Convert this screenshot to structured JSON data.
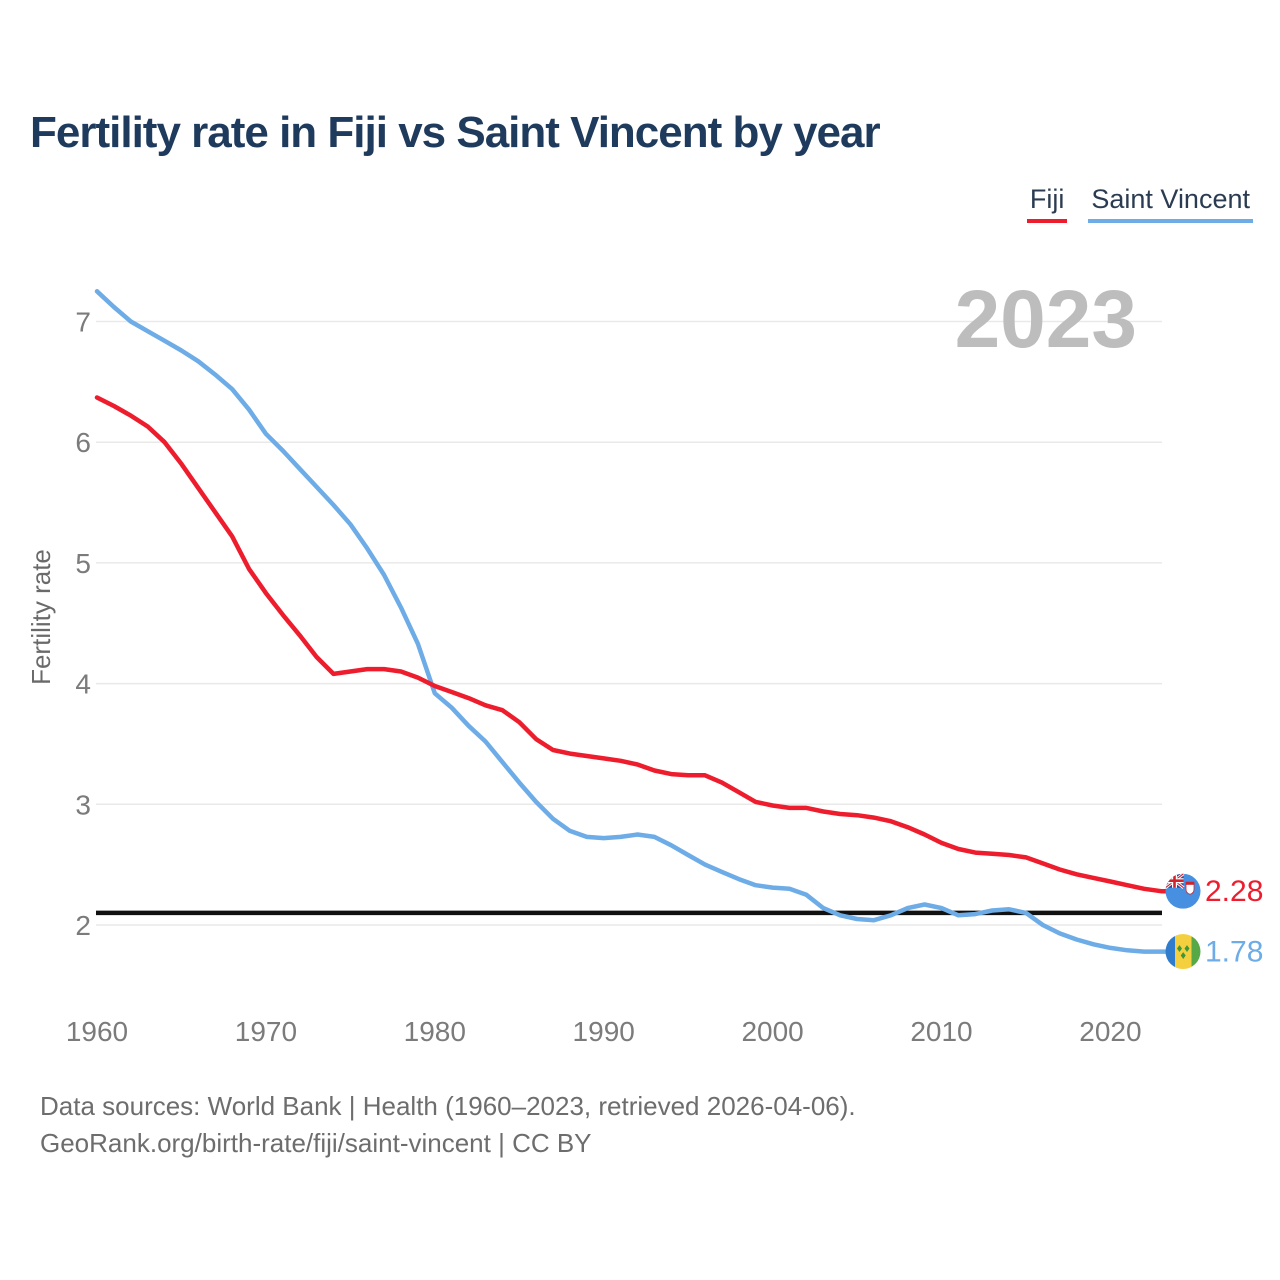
{
  "page": {
    "title": "Fertility rate in Fiji vs Saint Vincent by year"
  },
  "legend": [
    {
      "label": "Fiji",
      "color": "#ee1d2d"
    },
    {
      "label": "Saint Vincent",
      "color": "#6dace6"
    }
  ],
  "watermark": "2023",
  "chart_data": {
    "type": "line",
    "title": "Fertility rate in Fiji vs Saint Vincent by year",
    "xlabel": "",
    "ylabel": "Fertility rate",
    "grid": "horizontal",
    "legend_position": "top-right",
    "xlim": [
      1960,
      2023
    ],
    "ylim": [
      1.55,
      7.45
    ],
    "x_ticks": [
      1960,
      1970,
      1980,
      1990,
      2000,
      2010,
      2020
    ],
    "y_ticks": [
      2,
      3,
      4,
      5,
      6,
      7
    ],
    "reference_line": {
      "value": 2.1,
      "color": "#111111",
      "name": "replacement-rate"
    },
    "years": [
      1960,
      1961,
      1962,
      1963,
      1964,
      1965,
      1966,
      1967,
      1968,
      1969,
      1970,
      1971,
      1972,
      1973,
      1974,
      1975,
      1976,
      1977,
      1978,
      1979,
      1980,
      1981,
      1982,
      1983,
      1984,
      1985,
      1986,
      1987,
      1988,
      1989,
      1990,
      1991,
      1992,
      1993,
      1994,
      1995,
      1996,
      1997,
      1998,
      1999,
      2000,
      2001,
      2002,
      2003,
      2004,
      2005,
      2006,
      2007,
      2008,
      2009,
      2010,
      2011,
      2012,
      2013,
      2014,
      2015,
      2016,
      2017,
      2018,
      2019,
      2020,
      2021,
      2022,
      2023
    ],
    "series": [
      {
        "name": "Saint Vincent",
        "color": "#6dace6",
        "end_label": "1.78",
        "flag": "saint-vincent",
        "values": [
          7.25,
          7.12,
          7.0,
          6.92,
          6.84,
          6.76,
          6.67,
          6.56,
          6.44,
          6.27,
          6.07,
          5.93,
          5.78,
          5.63,
          5.48,
          5.32,
          5.12,
          4.9,
          4.63,
          4.33,
          3.92,
          3.8,
          3.65,
          3.52,
          3.35,
          3.18,
          3.02,
          2.88,
          2.78,
          2.73,
          2.72,
          2.73,
          2.75,
          2.73,
          2.66,
          2.58,
          2.5,
          2.44,
          2.38,
          2.33,
          2.31,
          2.3,
          2.25,
          2.14,
          2.08,
          2.05,
          2.04,
          2.08,
          2.14,
          2.17,
          2.14,
          2.08,
          2.09,
          2.12,
          2.13,
          2.1,
          2.0,
          1.93,
          1.88,
          1.84,
          1.81,
          1.79,
          1.78,
          1.78
        ]
      },
      {
        "name": "Fiji",
        "color": "#ee1d2d",
        "end_label": "2.28",
        "flag": "fiji",
        "values": [
          6.37,
          6.3,
          6.22,
          6.13,
          6.0,
          5.82,
          5.62,
          5.42,
          5.22,
          4.95,
          4.75,
          4.57,
          4.4,
          4.22,
          4.08,
          4.1,
          4.12,
          4.12,
          4.1,
          4.05,
          3.98,
          3.93,
          3.88,
          3.82,
          3.78,
          3.68,
          3.54,
          3.45,
          3.42,
          3.4,
          3.38,
          3.36,
          3.33,
          3.28,
          3.25,
          3.24,
          3.24,
          3.18,
          3.1,
          3.02,
          2.99,
          2.97,
          2.97,
          2.94,
          2.92,
          2.91,
          2.89,
          2.86,
          2.81,
          2.75,
          2.68,
          2.63,
          2.6,
          2.59,
          2.58,
          2.56,
          2.51,
          2.46,
          2.42,
          2.39,
          2.36,
          2.33,
          2.3,
          2.28
        ]
      }
    ],
    "flag_colors": {
      "fiji": {
        "field": "#478fe0",
        "canton": "#2e4593",
        "cross_red": "#d2222d",
        "white": "#ffffff"
      },
      "saint_vincent": {
        "blue": "#2f7ccc",
        "yellow": "#f5d03e",
        "green": "#57a846",
        "diamond": "#3d9639"
      }
    },
    "text_colors": {
      "axis_label": "#7b7b7b",
      "axis_title": "#6a6a6a",
      "watermark": "#bdbdbd",
      "gridline": "#e9e9e9"
    }
  },
  "footer": {
    "line1": "Data sources: World Bank | Health (1960–2023, retrieved 2026-04-06).",
    "line2": "GeoRank.org/birth-rate/fiji/saint-vincent | CC BY"
  }
}
